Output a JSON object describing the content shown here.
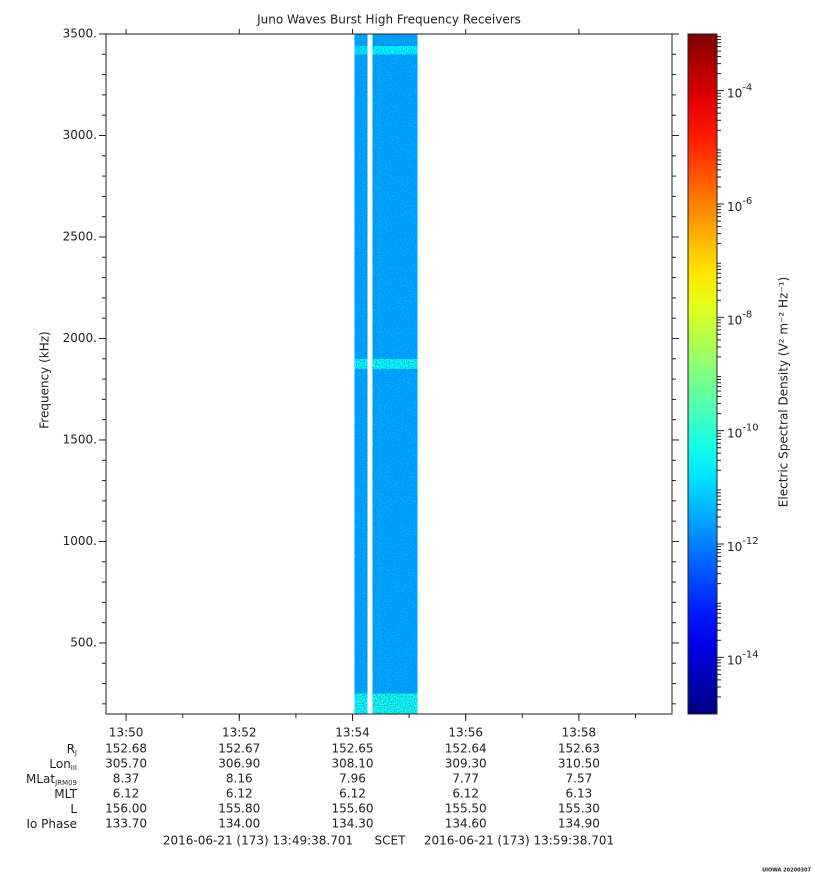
{
  "chart_data": {
    "type": "spectrogram",
    "title": "Juno Waves Burst High Frequency Receivers",
    "ylabel": "Frequency (kHz)",
    "ylim": [
      150,
      3500
    ],
    "yticks": [
      {
        "value": 500,
        "label": "500."
      },
      {
        "value": 1000,
        "label": "1000."
      },
      {
        "value": 1500,
        "label": "1500."
      },
      {
        "value": 2000,
        "label": "2000."
      },
      {
        "value": 2500,
        "label": "2500."
      },
      {
        "value": 3000,
        "label": "3000."
      },
      {
        "value": 3500,
        "label": "3500."
      }
    ],
    "xlim": [
      "13:49:38.701",
      "13:59:38.701"
    ],
    "xticks": [
      "13:50",
      "13:52",
      "13:54",
      "13:56",
      "13:58"
    ],
    "spectrogram": {
      "blocks": [
        {
          "start": "13:54:02",
          "end": "13:54:16"
        },
        {
          "start": "13:54:21",
          "end": "13:55:09"
        }
      ],
      "frequency_edges": [
        150,
        250,
        500,
        1000,
        1500,
        1850,
        1900,
        2000,
        2500,
        3000,
        3400,
        3440,
        3500
      ],
      "values": [
        [
          5e-11,
          3e-12,
          3e-12,
          3e-12,
          3e-12,
          4e-11,
          3e-12,
          3e-12,
          3e-12,
          3e-12,
          2e-11,
          3e-12
        ],
        [
          6e-11,
          3e-12,
          3e-12,
          3e-12,
          3e-12,
          5e-11,
          3e-12,
          3e-12,
          3e-12,
          3e-12,
          3e-11,
          3e-12
        ]
      ]
    },
    "colorbar": {
      "label": "Electric Spectral Density (V² m⁻² Hz⁻¹)",
      "log": true,
      "colormap": "jet",
      "zlim": [
        1e-15,
        0.001
      ],
      "ticks": [
        {
          "value": 0.0001,
          "label": "10",
          "exponent": "-4"
        },
        {
          "value": 1e-06,
          "label": "10",
          "exponent": "-6"
        },
        {
          "value": 1e-08,
          "label": "10",
          "exponent": "-8"
        },
        {
          "value": 1e-10,
          "label": "10",
          "exponent": "-10"
        },
        {
          "value": 1e-12,
          "label": "10",
          "exponent": "-12"
        },
        {
          "value": 1e-14,
          "label": "10",
          "exponent": "-14"
        }
      ]
    },
    "ephemeris": [
      {
        "label": "R",
        "sub": "J",
        "values": [
          "152.68",
          "152.67",
          "152.65",
          "152.64",
          "152.63"
        ]
      },
      {
        "label": "Lon",
        "sub": "III",
        "values": [
          "305.70",
          "306.90",
          "308.10",
          "309.30",
          "310.50"
        ]
      },
      {
        "label": "MLat",
        "sub": "JRM09",
        "values": [
          "8.37",
          "8.16",
          "7.96",
          "7.77",
          "7.57"
        ]
      },
      {
        "label": "MLT",
        "values": [
          "6.12",
          "6.12",
          "6.12",
          "6.12",
          "6.13"
        ]
      },
      {
        "label": "L",
        "values": [
          "156.00",
          "155.80",
          "155.60",
          "155.50",
          "155.30"
        ]
      },
      {
        "label": "Io Phase",
        "values": [
          "133.70",
          "134.00",
          "134.30",
          "134.60",
          "134.90"
        ]
      }
    ],
    "footer": {
      "start": "2016-06-21 (173) 13:49:38.701",
      "scale": "SCET",
      "end": "2016-06-21 (173) 13:59:38.701",
      "credit": "UIOWA 20200307"
    }
  }
}
